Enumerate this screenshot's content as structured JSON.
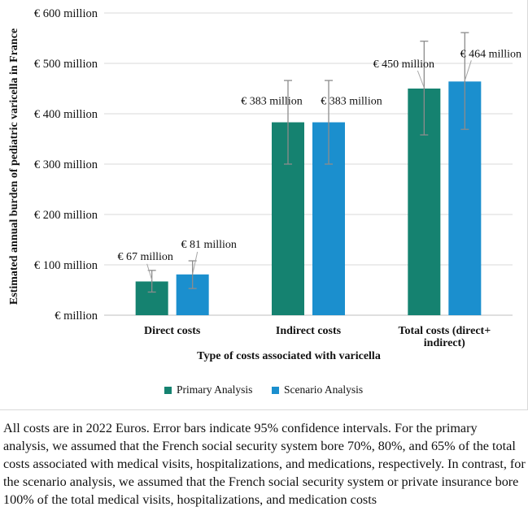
{
  "chart_data": {
    "type": "bar",
    "ylabel": "Estimated annual burden of pediatric varicella in France",
    "xlabel": "Type of costs associated with varicella",
    "categories": [
      [
        "Direct costs"
      ],
      [
        "Indirect costs"
      ],
      [
        "Total costs (direct+",
        "indirect)"
      ]
    ],
    "ylim": [
      0,
      600
    ],
    "yticks": [
      0,
      100,
      200,
      300,
      400,
      500,
      600
    ],
    "yticklabels": [
      "€  million",
      "€ 100 million",
      "€ 200 million",
      "€ 300 million",
      "€ 400 million",
      "€ 500 million",
      "€ 600 million"
    ],
    "grid": true,
    "legend_position": "bottom",
    "series": [
      {
        "name": "Primary Analysis",
        "color": "#158270",
        "values": [
          67,
          383,
          450
        ],
        "error_low": [
          46,
          300,
          358
        ],
        "error_high": [
          89,
          466,
          544
        ],
        "data_labels": [
          "€ 67 million",
          "€ 383 million",
          "€ 450 million"
        ]
      },
      {
        "name": "Scenario Analysis",
        "color": "#1b8fce",
        "values": [
          81,
          383,
          464
        ],
        "error_low": [
          53,
          300,
          369
        ],
        "error_high": [
          108,
          466,
          561
        ],
        "data_labels": [
          "€ 81 million",
          "€ 383 million",
          "€ 464 million"
        ]
      }
    ]
  },
  "caption": "All costs are in 2022 Euros. Error bars indicate 95% confidence intervals. For the primary analysis, we assumed that the French social security system bore 70%, 80%, and 65% of the total costs associated with medical visits, hospitalizations, and medications, respectively. In contrast, for the scenario analysis, we assumed that the French social security system or private insurance bore 100% of the total medical visits, hospitalizations, and medication costs"
}
